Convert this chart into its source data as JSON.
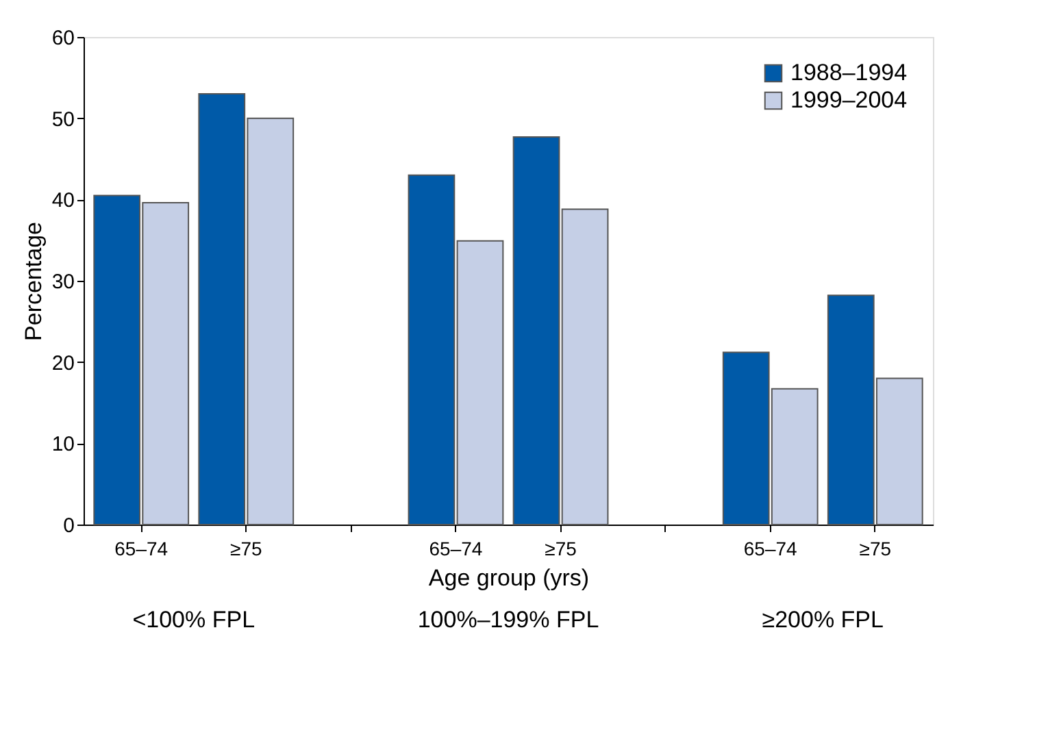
{
  "chart_data": {
    "type": "bar",
    "xlabel": "Age group (yrs)",
    "ylabel": "Percentage",
    "categories": [
      "65–74",
      "≥75",
      "65–74",
      "≥75",
      "65–74",
      "≥75"
    ],
    "series": [
      {
        "name": "1988–1994",
        "color": "#005aa8",
        "values": [
          40.5,
          53,
          43,
          47.7,
          21.2,
          28.2
        ]
      },
      {
        "name": "1999–2004",
        "color": "#c5cfe6",
        "values": [
          39.6,
          50,
          34.9,
          38.8,
          16.7,
          18
        ]
      }
    ],
    "annotations": [
      "<100% FPL",
      "100%–199% FPL",
      "≥200% FPL"
    ],
    "ylim": [
      0,
      60
    ],
    "yticks": [
      0,
      10,
      20,
      30,
      40,
      50,
      60
    ],
    "grid": false,
    "legend": "top right"
  }
}
